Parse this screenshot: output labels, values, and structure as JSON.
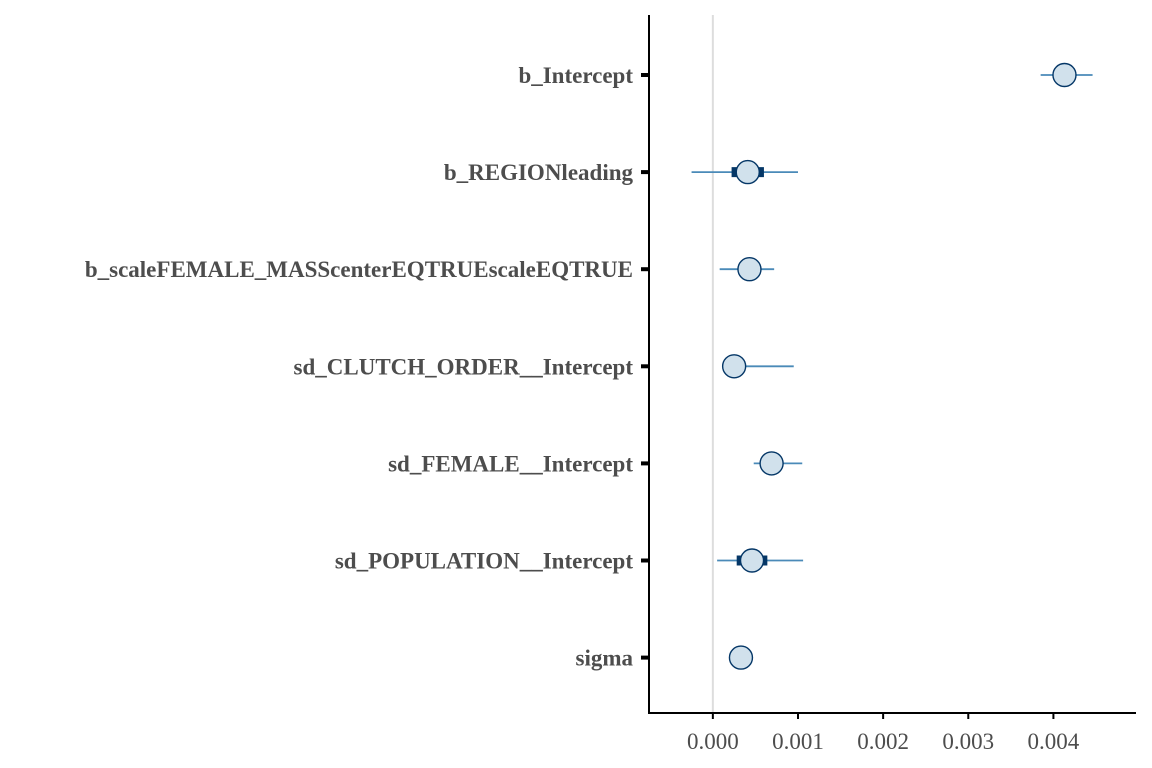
{
  "chart_data": {
    "type": "interval",
    "title": "",
    "xlabel": "",
    "ylabel": "",
    "xlim": [
      -0.00075,
      0.00497
    ],
    "x_ticks": [
      0.0,
      0.001,
      0.002,
      0.003,
      0.004
    ],
    "x_tick_labels": [
      "0.000",
      "0.001",
      "0.002",
      "0.003",
      "0.004"
    ],
    "reference_line": 0,
    "grid": false,
    "colors": {
      "outer_interval": "#4a8ab8",
      "inner_interval": "#053767",
      "point_fill": "#d1e1ec",
      "point_stroke": "#053767",
      "reference_line": "#dddddd",
      "axis": "#000000",
      "text": "#4d4d4d"
    },
    "parameters": [
      {
        "name": "b_Intercept",
        "median": 0.00413,
        "inner": [
          0.00413,
          0.00413
        ],
        "outer": [
          0.00385,
          0.00446
        ]
      },
      {
        "name": "b_REGIONleading",
        "median": 0.00041,
        "inner": [
          0.00022,
          0.0006
        ],
        "outer": [
          -0.00025,
          0.001
        ]
      },
      {
        "name": "b_scaleFEMALE_MASScenterEQTRUEscaleEQTRUE",
        "median": 0.00043,
        "inner": [
          0.00043,
          0.00043
        ],
        "outer": [
          8e-05,
          0.00072
        ]
      },
      {
        "name": "sd_CLUTCH_ORDER__Intercept",
        "median": 0.00025,
        "inner": [
          0.00025,
          0.00025
        ],
        "outer": [
          0.00025,
          0.00095
        ]
      },
      {
        "name": "sd_FEMALE__Intercept",
        "median": 0.00069,
        "inner": [
          0.00069,
          0.00069
        ],
        "outer": [
          0.00048,
          0.00105
        ]
      },
      {
        "name": "sd_POPULATION__Intercept",
        "median": 0.00046,
        "inner": [
          0.00028,
          0.00064
        ],
        "outer": [
          5e-05,
          0.00106
        ]
      },
      {
        "name": "sigma",
        "median": 0.00033,
        "inner": [
          0.00033,
          0.00033
        ],
        "outer": [
          0.00033,
          0.00033
        ]
      }
    ]
  }
}
